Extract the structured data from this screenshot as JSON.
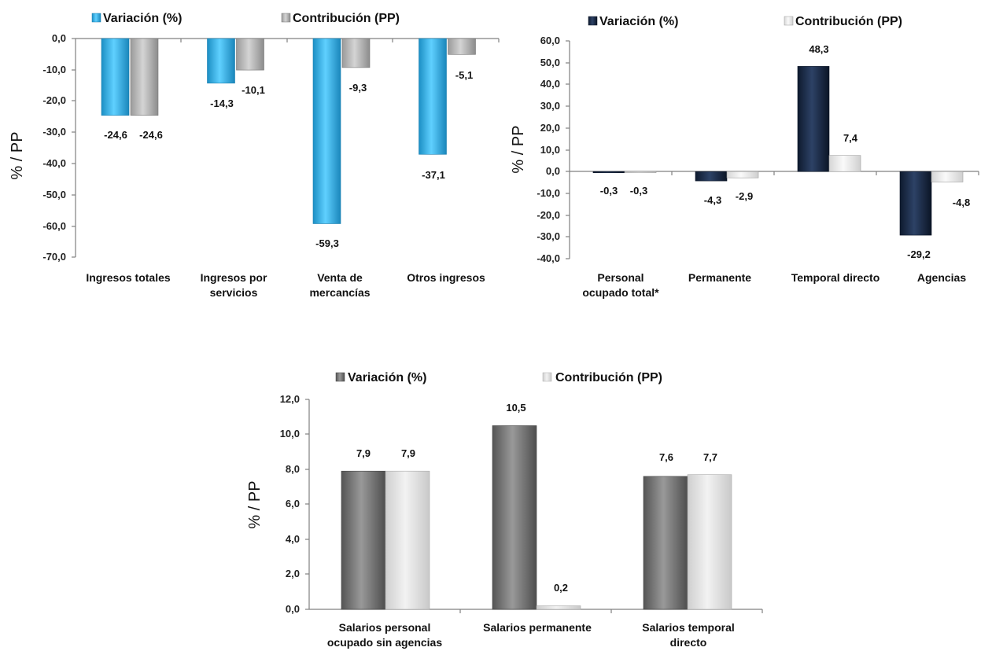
{
  "chart_data": [
    {
      "type": "bar",
      "categories": [
        "Ingresos totales",
        "Ingresos por servicios",
        "Venta de mercancías",
        "Otros ingresos"
      ],
      "series": [
        {
          "name": "Variación (%)",
          "values": [
            -24.6,
            -14.3,
            -59.3,
            -37.1
          ],
          "color": "#2ab4ef"
        },
        {
          "name": "Contribución (PP)",
          "values": [
            -24.6,
            -10.1,
            -9.3,
            -5.1
          ],
          "color": "#bdbdbd"
        }
      ],
      "data_labels": [
        "-24,6",
        "-14,3",
        "-59,3",
        "-37,1",
        "-24,6",
        "-10,1",
        "-9,3",
        "-5,1"
      ],
      "ylabel": "% / PP",
      "ylim": [
        -70,
        0
      ],
      "yticks": [
        "0,0",
        "-10,0",
        "-20,0",
        "-30,0",
        "-40,0",
        "-50,0",
        "-60,0",
        "-70,0"
      ],
      "legend": "top",
      "grid": false
    },
    {
      "type": "bar",
      "categories": [
        "Personal ocupado total*",
        "Permanente",
        "Temporal directo",
        "Agencias"
      ],
      "series": [
        {
          "name": "Variación (%)",
          "values": [
            -0.3,
            -4.3,
            48.3,
            -29.2
          ],
          "color": "#1b2a44"
        },
        {
          "name": "Contribución (PP)",
          "values": [
            -0.3,
            -2.9,
            7.4,
            -4.8
          ],
          "color": "#ececec"
        }
      ],
      "data_labels": [
        "-0,3",
        "-4,3",
        "48,3",
        "-29,2",
        "-0,3",
        "-2,9",
        "7,4",
        "-4,8"
      ],
      "ylabel": "% / PP",
      "ylim": [
        -40,
        60
      ],
      "yticks": [
        "60,0",
        "50,0",
        "40,0",
        "30,0",
        "20,0",
        "10,0",
        "0,0",
        "-10,0",
        "-20,0",
        "-30,0",
        "-40,0"
      ],
      "legend": "top",
      "grid": false
    },
    {
      "type": "bar",
      "categories": [
        "Salarios personal ocupado sin agencias",
        "Salarios permanente",
        "Salarios temporal directo"
      ],
      "series": [
        {
          "name": "Variación (%)",
          "values": [
            7.9,
            10.5,
            7.6
          ],
          "color": "#7a7a7a"
        },
        {
          "name": "Contribución (PP)",
          "values": [
            7.9,
            0.2,
            7.7
          ],
          "color": "#e4e4e4"
        }
      ],
      "data_labels": [
        "7,9",
        "10,5",
        "7,6",
        "7,9",
        "0,2",
        "7,7"
      ],
      "ylabel": "% / PP",
      "ylim": [
        0,
        12
      ],
      "yticks": [
        "12,0",
        "10,0",
        "8,0",
        "6,0",
        "4,0",
        "2,0",
        "0,0"
      ],
      "legend": "top",
      "grid": false
    }
  ]
}
